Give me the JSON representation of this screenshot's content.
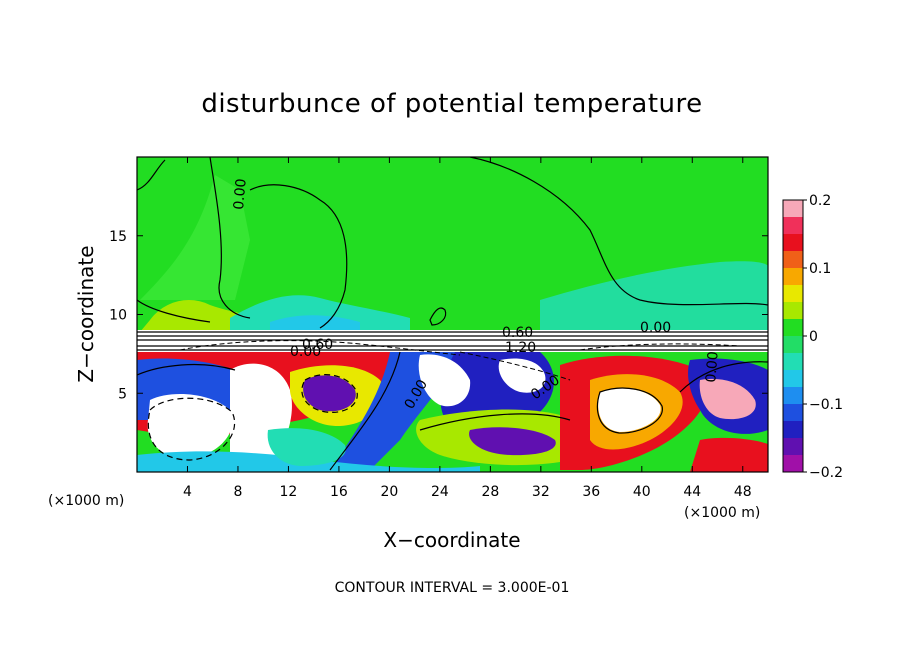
{
  "chart_data": {
    "type": "heatmap",
    "title": "disturbunce of potential temperature",
    "xlabel": "X−coordinate",
    "ylabel": "Z−coordinate",
    "x_unit_left": "(×1000 m)",
    "x_unit_right": "(×1000 m)",
    "xlim": [
      0,
      50
    ],
    "ylim": [
      0,
      20
    ],
    "x_ticks": [
      "4",
      "8",
      "12",
      "16",
      "20",
      "24",
      "28",
      "32",
      "36",
      "40",
      "44",
      "48"
    ],
    "y_ticks": [
      "5",
      "10",
      "15"
    ],
    "colorbar": {
      "range": [
        -0.2,
        0.2
      ],
      "ticks": [
        "0.2",
        "0.1",
        "0",
        "−0.1",
        "−0.2"
      ],
      "colors": [
        "#f7a8b8",
        "#f0305a",
        "#e8101e",
        "#f06018",
        "#f8a800",
        "#e8e800",
        "#a8e800",
        "#22dd22",
        "#22dd66",
        "#22ddb4",
        "#22c8e8",
        "#1e8ef0",
        "#1e50e0",
        "#2020c0",
        "#6010b0",
        "#a010a8"
      ]
    },
    "contour_interval_text": "CONTOUR INTERVAL = 3.000E-01",
    "contour_labels": [
      "0.00",
      "0.00",
      "0.00",
      "0.60",
      "0.60",
      "0.00",
      "1.20",
      "0.00",
      "0.00",
      "0.00",
      "0.00"
    ],
    "grid": false
  },
  "colors": {
    "background_green": "#22dd22",
    "light_green": "#44e838",
    "cyan": "#22c8e8",
    "blue": "#1e50e0",
    "dark_blue": "#2020c0",
    "purple": "#7010b0",
    "yellow": "#e8e800",
    "orange": "#f8a800",
    "red": "#e8101e",
    "pink": "#f7a8b8",
    "white": "#ffffff",
    "black": "#000000"
  }
}
